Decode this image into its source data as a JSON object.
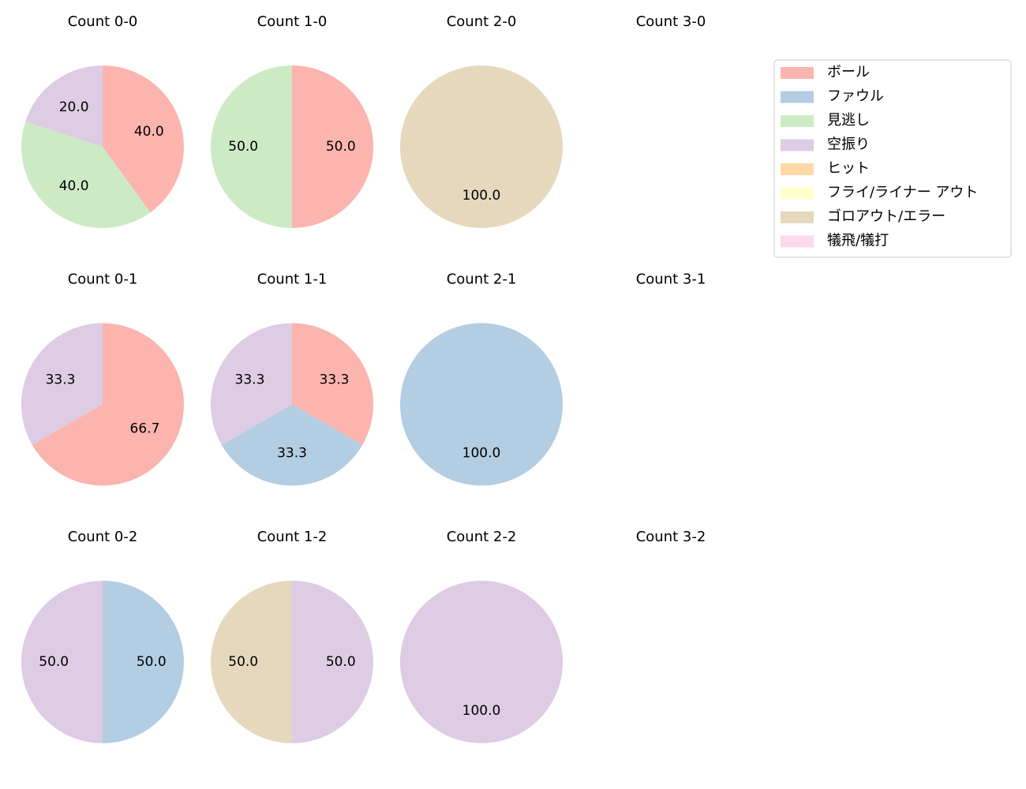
{
  "legend": {
    "labels": [
      "ボール",
      "ファウル",
      "見逃し",
      "空振り",
      "ヒット",
      "フライ/ライナー アウト",
      "ゴロアウト/エラー",
      "犠飛/犠打"
    ],
    "colors": [
      "#fbb4ae",
      "#b3cde3",
      "#ccebc5",
      "#decbe4",
      "#fed9a6",
      "#ffffcc",
      "#e5d8bd",
      "#fddaec"
    ]
  },
  "chart_data": [
    {
      "type": "pie",
      "title": "Count 0-0",
      "categories": [
        "ボール",
        "見逃し",
        "空振り"
      ],
      "values": [
        40,
        40,
        20
      ],
      "value_labels": [
        "40.0",
        "40.0",
        "20.0"
      ]
    },
    {
      "type": "pie",
      "title": "Count 1-0",
      "categories": [
        "ボール",
        "見逃し"
      ],
      "values": [
        50,
        50
      ],
      "value_labels": [
        "50.0",
        "50.0"
      ]
    },
    {
      "type": "pie",
      "title": "Count 2-0",
      "categories": [
        "ゴロアウト/エラー"
      ],
      "values": [
        100
      ],
      "value_labels": [
        "100.0"
      ]
    },
    {
      "type": "pie",
      "title": "Count 3-0",
      "categories": [],
      "values": [],
      "value_labels": []
    },
    {
      "type": "pie",
      "title": "Count 0-1",
      "categories": [
        "ボール",
        "空振り"
      ],
      "values": [
        66.7,
        33.3
      ],
      "value_labels": [
        "66.7",
        "33.3"
      ]
    },
    {
      "type": "pie",
      "title": "Count 1-1",
      "categories": [
        "ボール",
        "ファウル",
        "空振り"
      ],
      "values": [
        33.3,
        33.3,
        33.3
      ],
      "value_labels": [
        "33.3",
        "33.3",
        "33.3"
      ]
    },
    {
      "type": "pie",
      "title": "Count 2-1",
      "categories": [
        "ファウル"
      ],
      "values": [
        100
      ],
      "value_labels": [
        "100.0"
      ]
    },
    {
      "type": "pie",
      "title": "Count 3-1",
      "categories": [],
      "values": [],
      "value_labels": []
    },
    {
      "type": "pie",
      "title": "Count 0-2",
      "categories": [
        "ファウル",
        "空振り"
      ],
      "values": [
        50,
        50
      ],
      "value_labels": [
        "50.0",
        "50.0"
      ]
    },
    {
      "type": "pie",
      "title": "Count 1-2",
      "categories": [
        "空振り",
        "ゴロアウト/エラー"
      ],
      "values": [
        50,
        50
      ],
      "value_labels": [
        "50.0",
        "50.0"
      ]
    },
    {
      "type": "pie",
      "title": "Count 2-2",
      "categories": [
        "空振り"
      ],
      "values": [
        100
      ],
      "value_labels": [
        "100.0"
      ]
    },
    {
      "type": "pie",
      "title": "Count 3-2",
      "categories": [],
      "values": [],
      "value_labels": []
    }
  ]
}
